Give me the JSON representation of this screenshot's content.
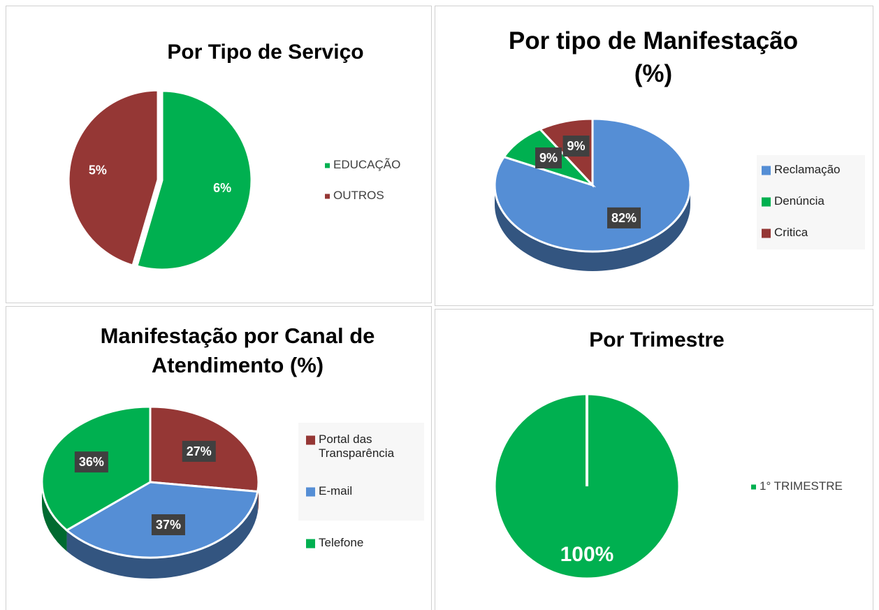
{
  "chart_data": [
    {
      "type": "pie",
      "title": "Por Tipo de Serviço",
      "categories": [
        "EDUCAÇÃO",
        "OUTROS"
      ],
      "values": [
        6,
        5
      ],
      "value_labels": [
        "6%",
        "5%"
      ],
      "colors": [
        "#00b050",
        "#953735"
      ],
      "legend": "right"
    },
    {
      "type": "pie3d",
      "title": "Por tipo de Manifestação (%)",
      "categories": [
        "Reclamação",
        "Denúncia",
        "Critica"
      ],
      "values": [
        82,
        9,
        9
      ],
      "value_labels": [
        "82%",
        "9%",
        "9%"
      ],
      "colors": [
        "#558ed5",
        "#00b050",
        "#953735"
      ],
      "legend": "right"
    },
    {
      "type": "pie3d",
      "title": "Manifestação por Canal de Atendimento (%)",
      "categories": [
        "Portal das Transparência",
        "E-mail",
        "Telefone"
      ],
      "values": [
        27,
        37,
        36
      ],
      "value_labels": [
        "27%",
        "37%",
        "36%"
      ],
      "colors": [
        "#953735",
        "#558ed5",
        "#00b050"
      ],
      "legend": "right"
    },
    {
      "type": "pie",
      "title": "Por Trimestre",
      "categories": [
        "1° TRIMESTRE"
      ],
      "values": [
        100
      ],
      "value_labels": [
        "100%"
      ],
      "colors": [
        "#00b050"
      ],
      "legend": "right"
    }
  ]
}
